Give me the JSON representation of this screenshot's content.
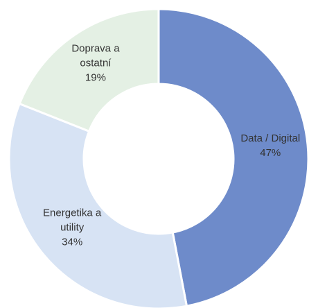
{
  "chart_data": {
    "type": "donut",
    "categories": [
      "Data / Digital",
      "Energetika a utility",
      "Doprava a ostatní"
    ],
    "values": [
      47,
      34,
      19
    ],
    "value_labels": [
      "47%",
      "34%",
      "19%"
    ],
    "colors": [
      "#6e8bca",
      "#d7e3f4",
      "#e4f0e4"
    ]
  }
}
